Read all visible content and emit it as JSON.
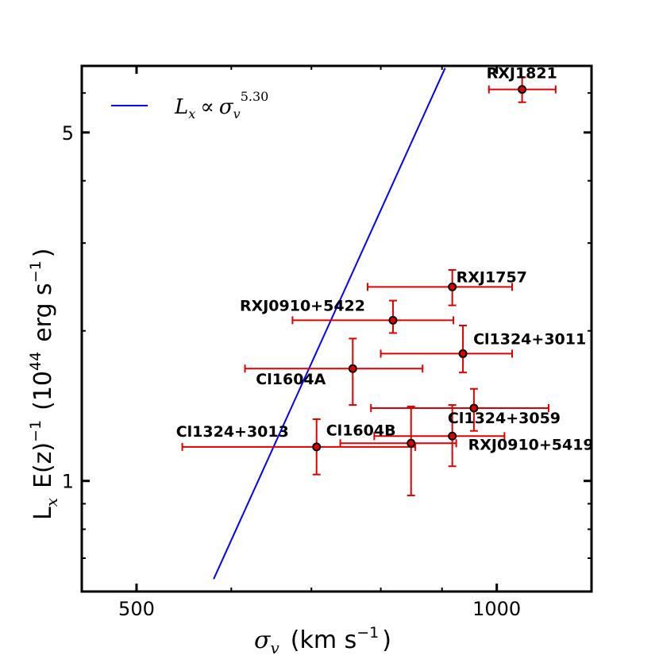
{
  "chart_data": {
    "type": "scatter",
    "title": "",
    "x_scale": "log",
    "y_scale": "log",
    "xlim": [
      450,
      1200
    ],
    "ylim": [
      0.6,
      6.8
    ],
    "xticks": [
      {
        "value": 500,
        "label": "500"
      },
      {
        "value": 1000,
        "label": "1000"
      }
    ],
    "yticks": [
      {
        "value": 1,
        "label": "1"
      },
      {
        "value": 5,
        "label": "5"
      }
    ],
    "xlabel": {
      "symbol": "σ",
      "subscript": "v",
      "text": "(km s",
      "exp": "−1",
      "close": ")"
    },
    "ylabel": {
      "symbol": "L",
      "subscript": "x",
      "text": "E(z)",
      "exp": "−1",
      "open": "(10",
      "exp2": "44",
      "units": "erg s",
      "exp3": "−1",
      "close": ")"
    },
    "fit": {
      "name": "Lx ∝ σv^5.30",
      "exponent": 5.3,
      "color": "#0000ff",
      "x_from": 580,
      "x_to": 935,
      "y_at_1000": 11.4
    },
    "legend": {
      "symbol": "L",
      "sub": "x",
      "prop": "∝",
      "sym2": "σ",
      "sub2": "v",
      "exp": "5.30",
      "position": "top-left"
    },
    "series": [
      {
        "name": "clusters",
        "color": "#e00000",
        "points": [
          {
            "label": "RXJ1821",
            "x": 1050,
            "y": 6.1,
            "xlo": 985,
            "xhi": 1120,
            "ylo": 5.75,
            "yhi": 6.45,
            "label_dx": -45,
            "label_dy": -14
          },
          {
            "label": "RXJ1757",
            "x": 918,
            "y": 2.45,
            "xlo": 780,
            "xhi": 1030,
            "ylo": 2.25,
            "yhi": 2.65,
            "label_dx": 5,
            "label_dy": -6
          },
          {
            "label": "RXJ0910+5422",
            "x": 819,
            "y": 2.1,
            "xlo": 675,
            "xhi": 920,
            "ylo": 1.98,
            "yhi": 2.3,
            "label_dx": -193,
            "label_dy": -12
          },
          {
            "label": "Cl1324+3011",
            "x": 937,
            "y": 1.8,
            "xlo": 800,
            "xhi": 1030,
            "ylo": 1.65,
            "yhi": 2.05,
            "label_dx": 13,
            "label_dy": -12
          },
          {
            "label": "Cl1604A",
            "x": 758,
            "y": 1.68,
            "xlo": 616,
            "xhi": 867,
            "ylo": 1.42,
            "yhi": 1.93,
            "label_dx": -122,
            "label_dy": 20
          },
          {
            "label": "Cl1324+3059",
            "x": 957,
            "y": 1.4,
            "xlo": 785,
            "xhi": 1105,
            "ylo": 1.26,
            "yhi": 1.53,
            "label_dx": -33,
            "label_dy": 19
          },
          {
            "label": "RXJ0910+5419",
            "x": 918,
            "y": 1.23,
            "xlo": 790,
            "xhi": 1015,
            "ylo": 1.07,
            "yhi": 1.42,
            "label_dx": 20,
            "label_dy": 17
          },
          {
            "label": "Cl1604B",
            "x": 848,
            "y": 1.19,
            "xlo": 740,
            "xhi": 925,
            "ylo": 0.935,
            "yhi": 1.41,
            "label_dx": -107,
            "label_dy": -10
          },
          {
            "label": "Cl1324+3013",
            "x": 707,
            "y": 1.17,
            "xlo": 546,
            "xhi": 855,
            "ylo": 1.03,
            "yhi": 1.33,
            "label_dx": -177,
            "label_dy": -13
          }
        ]
      }
    ]
  }
}
